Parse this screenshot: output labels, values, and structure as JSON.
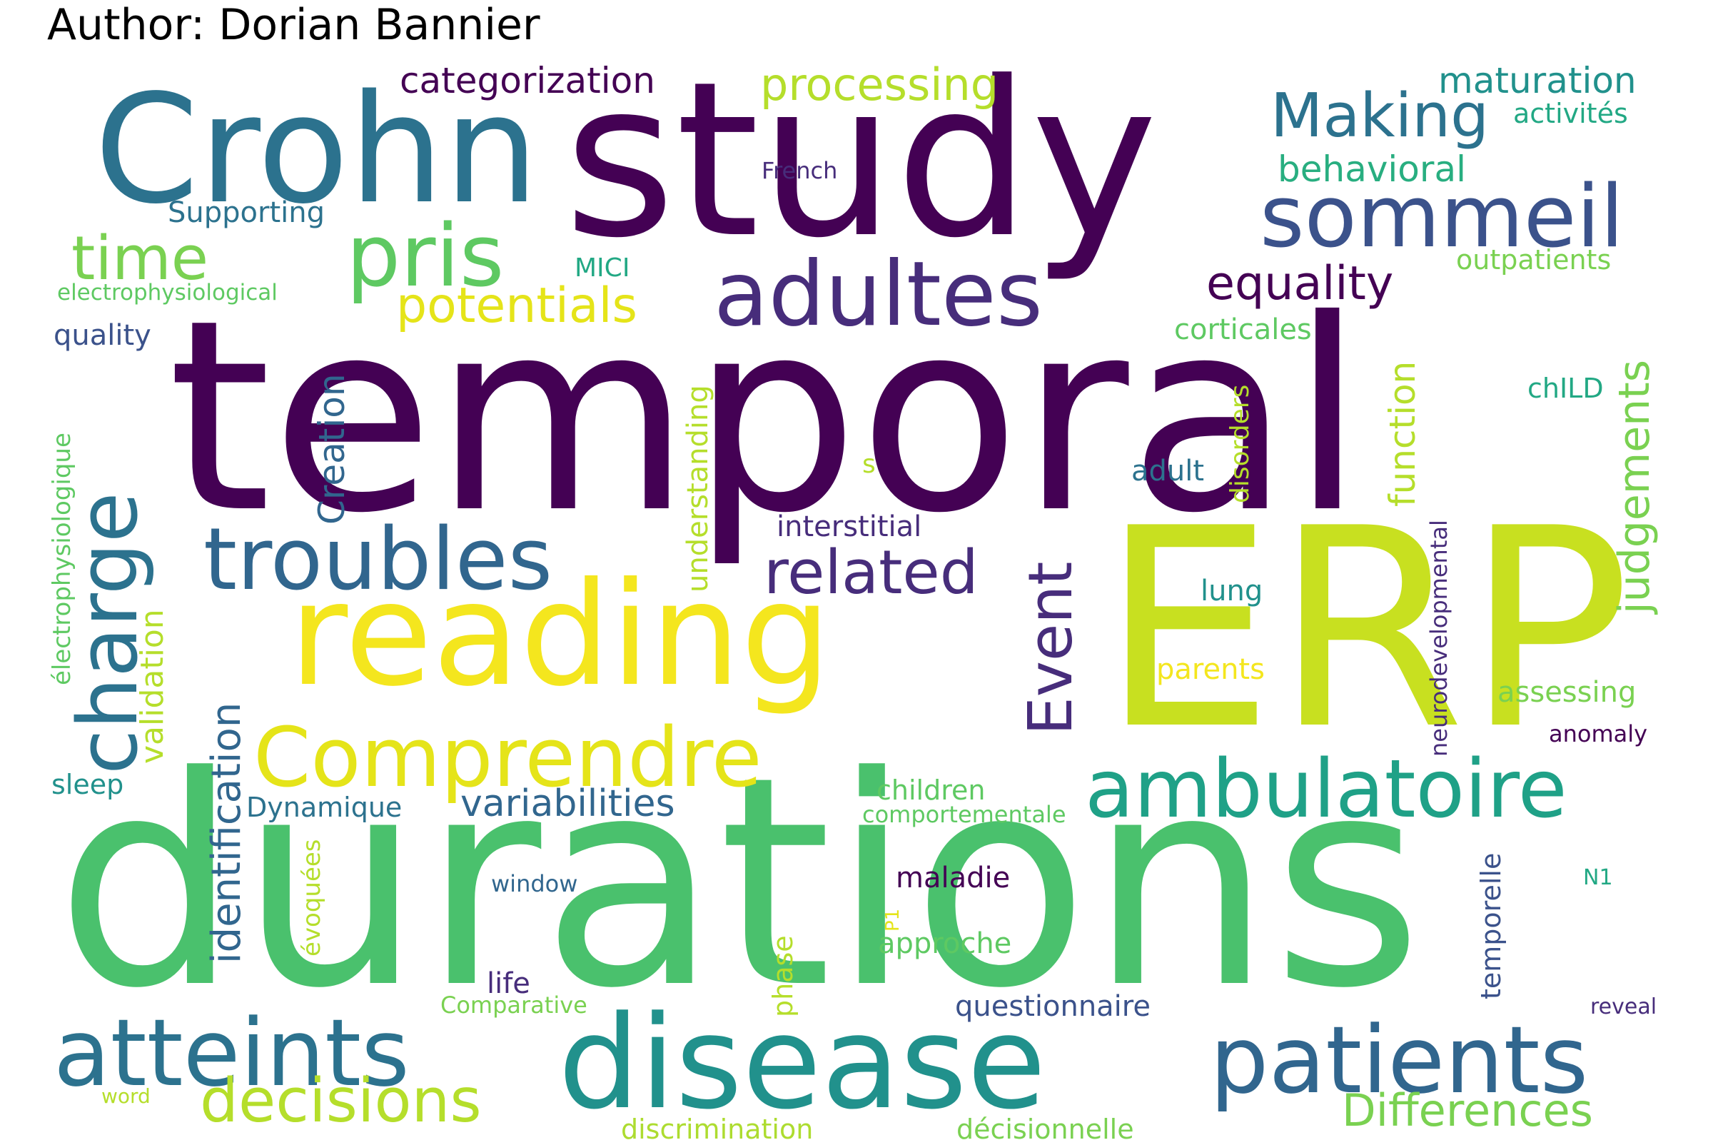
{
  "header": {
    "author": "Author: Dorian Bannier"
  },
  "palette": {
    "dark_purple": "#440154",
    "indigo": "#472d7b",
    "blue": "#3b528b",
    "slate": "#2c728e",
    "teal": "#21918c",
    "green_teal": "#28ae80",
    "green": "#5ec962",
    "light_green": "#addc30",
    "yellow": "#fde725"
  },
  "words": [
    {
      "text": "temporal",
      "color": "#440154"
    },
    {
      "text": "durations",
      "color": "#4ac16d"
    },
    {
      "text": "study",
      "color": "#440154"
    },
    {
      "text": "ERP",
      "color": "#c8e020"
    },
    {
      "text": "Crohn",
      "color": "#2c728e"
    },
    {
      "text": "reading",
      "color": "#f4e61e"
    },
    {
      "text": "disease",
      "color": "#21918c"
    },
    {
      "text": "atteints",
      "color": "#2c728e"
    },
    {
      "text": "patients",
      "color": "#31668e"
    },
    {
      "text": "adultes",
      "color": "#472d7b"
    },
    {
      "text": "sommeil",
      "color": "#3b528b"
    },
    {
      "text": "troubles",
      "color": "#31668e"
    },
    {
      "text": "pris",
      "color": "#5ec962"
    },
    {
      "text": "Comprendre",
      "color": "#e5e419"
    },
    {
      "text": "ambulatoire",
      "color": "#1fa187"
    },
    {
      "text": "charge",
      "color": "#2c728e"
    },
    {
      "text": "Making",
      "color": "#2c728e"
    },
    {
      "text": "related",
      "color": "#472d7b"
    },
    {
      "text": "Event",
      "color": "#472d7b"
    },
    {
      "text": "time",
      "color": "#7ad151"
    },
    {
      "text": "decisions",
      "color": "#b5de2b"
    },
    {
      "text": "Differences",
      "color": "#7ad151"
    },
    {
      "text": "potentials",
      "color": "#e5e419"
    },
    {
      "text": "processing",
      "color": "#b5de2b"
    },
    {
      "text": "categorization",
      "color": "#440154"
    },
    {
      "text": "equality",
      "color": "#440154"
    },
    {
      "text": "maturation",
      "color": "#21918c"
    },
    {
      "text": "behavioral",
      "color": "#28ae80"
    },
    {
      "text": "activités",
      "color": "#22a884"
    },
    {
      "text": "French",
      "color": "#472d7b"
    },
    {
      "text": "Supporting",
      "color": "#2c728e"
    },
    {
      "text": "MICI",
      "color": "#22a884"
    },
    {
      "text": "outpatients",
      "color": "#7ad151"
    },
    {
      "text": "electrophysiological",
      "color": "#5ec962"
    },
    {
      "text": "quality",
      "color": "#3b528b"
    },
    {
      "text": "corticales",
      "color": "#5ec962"
    },
    {
      "text": "Creation",
      "color": "#31668e"
    },
    {
      "text": "judgements",
      "color": "#7ad151"
    },
    {
      "text": "function",
      "color": "#b5de2b"
    },
    {
      "text": "disorders",
      "color": "#b5de2b"
    },
    {
      "text": "chILD",
      "color": "#22a884"
    },
    {
      "text": "adult",
      "color": "#2c728e"
    },
    {
      "text": "s",
      "color": "#b5de2b"
    },
    {
      "text": "understanding",
      "color": "#b5de2b"
    },
    {
      "text": "électrophysiologique",
      "color": "#5ec962"
    },
    {
      "text": "interstitial",
      "color": "#472d7b"
    },
    {
      "text": "validation",
      "color": "#b5de2b"
    },
    {
      "text": "identification",
      "color": "#31668e"
    },
    {
      "text": "lung",
      "color": "#21918c"
    },
    {
      "text": "neurodevelopmental",
      "color": "#472d7b"
    },
    {
      "text": "parents",
      "color": "#f4e61e"
    },
    {
      "text": "assessing",
      "color": "#7ad151"
    },
    {
      "text": "anomaly",
      "color": "#440154"
    },
    {
      "text": "sleep",
      "color": "#21918c"
    },
    {
      "text": "variabilities",
      "color": "#31668e"
    },
    {
      "text": "Dynamique",
      "color": "#2c728e"
    },
    {
      "text": "children",
      "color": "#5ec962"
    },
    {
      "text": "comportementale",
      "color": "#5ec962"
    },
    {
      "text": "évoquées",
      "color": "#b5de2b"
    },
    {
      "text": "window",
      "color": "#31668e"
    },
    {
      "text": "maladie",
      "color": "#440154"
    },
    {
      "text": "P1",
      "color": "#e5e419"
    },
    {
      "text": "approche",
      "color": "#5ec962"
    },
    {
      "text": "temporelle",
      "color": "#3b528b"
    },
    {
      "text": "N1",
      "color": "#22a884"
    },
    {
      "text": "life",
      "color": "#472d7b"
    },
    {
      "text": "phase",
      "color": "#b5de2b"
    },
    {
      "text": "Comparative",
      "color": "#7ad151"
    },
    {
      "text": "questionnaire",
      "color": "#3b528b"
    },
    {
      "text": "reveal",
      "color": "#472d7b"
    },
    {
      "text": "word",
      "color": "#b5de2b"
    },
    {
      "text": "discrimination",
      "color": "#addc30"
    },
    {
      "text": "décisionnelle",
      "color": "#7ad151"
    }
  ]
}
